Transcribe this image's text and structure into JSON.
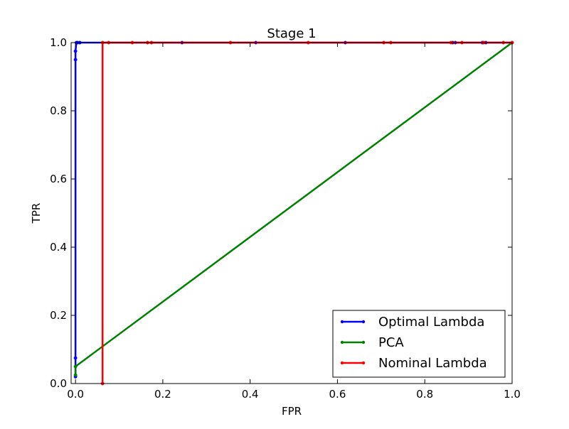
{
  "chart_data": {
    "type": "line",
    "title": "Stage 1",
    "xlabel": "FPR",
    "ylabel": "TPR",
    "xlim": [
      -0.01,
      1.0
    ],
    "ylim": [
      0.0,
      1.0
    ],
    "x_ticks": [
      {
        "value": 0.0,
        "label": "0.0"
      },
      {
        "value": 0.2,
        "label": "0.2"
      },
      {
        "value": 0.4,
        "label": "0.4"
      },
      {
        "value": 0.6,
        "label": "0.6"
      },
      {
        "value": 0.8,
        "label": "0.8"
      },
      {
        "value": 1.0,
        "label": "1.0"
      }
    ],
    "y_ticks": [
      {
        "value": 0.0,
        "label": "0.0"
      },
      {
        "value": 0.2,
        "label": "0.2"
      },
      {
        "value": 0.4,
        "label": "0.4"
      },
      {
        "value": 0.6,
        "label": "0.6"
      },
      {
        "value": 0.8,
        "label": "0.8"
      },
      {
        "value": 1.0,
        "label": "1.0"
      }
    ],
    "grid": false,
    "legend_position": "lower-right",
    "series": [
      {
        "name": "Optimal Lambda",
        "color": "#0000ff",
        "points": [
          [
            0.0,
            0.02
          ],
          [
            0.0,
            0.075
          ],
          [
            0.0,
            0.95
          ],
          [
            0.0,
            0.975
          ],
          [
            0.002,
            1.0
          ],
          [
            0.005,
            1.0
          ],
          [
            0.01,
            1.0
          ],
          [
            0.244,
            1.0
          ],
          [
            0.413,
            1.0
          ],
          [
            0.618,
            1.0
          ],
          [
            0.864,
            1.0
          ],
          [
            0.87,
            1.0
          ],
          [
            0.932,
            1.0
          ],
          [
            0.94,
            1.0
          ],
          [
            1.0,
            1.0
          ]
        ]
      },
      {
        "name": "PCA",
        "color": "#008000",
        "points": [
          [
            0.0,
            0.025
          ],
          [
            0.0,
            0.05
          ],
          [
            1.0,
            1.0
          ]
        ]
      },
      {
        "name": "Nominal Lambda",
        "color": "#ff0000",
        "points": [
          [
            0.062,
            0.0
          ],
          [
            0.062,
            1.0
          ],
          [
            0.076,
            1.0
          ],
          [
            0.13,
            1.0
          ],
          [
            0.165,
            1.0
          ],
          [
            0.174,
            1.0
          ],
          [
            0.355,
            1.0
          ],
          [
            0.533,
            1.0
          ],
          [
            0.706,
            1.0
          ],
          [
            0.722,
            1.0
          ],
          [
            0.86,
            1.0
          ],
          [
            0.885,
            1.0
          ],
          [
            0.935,
            1.0
          ],
          [
            0.98,
            1.0
          ],
          [
            1.0,
            1.0
          ]
        ]
      }
    ]
  }
}
